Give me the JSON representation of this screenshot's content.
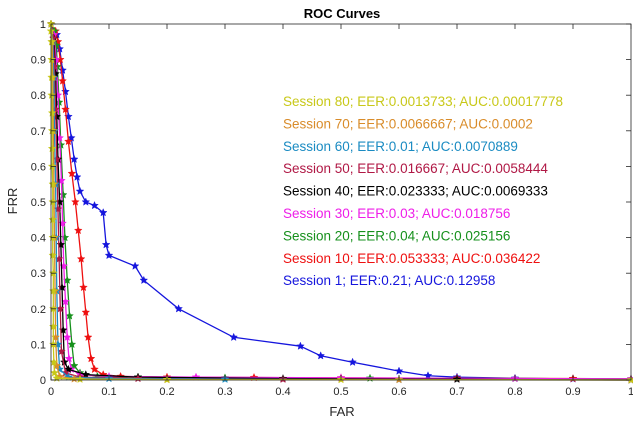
{
  "chart_data": {
    "type": "line",
    "title": "ROC Curves",
    "xlabel": "FAR",
    "ylabel": "FRR",
    "xlim": [
      0,
      1
    ],
    "ylim": [
      0,
      1
    ],
    "x_ticks": [
      "0",
      "0.1",
      "0.2",
      "0.3",
      "0.4",
      "0.5",
      "0.6",
      "0.7",
      "0.8",
      "0.9",
      "1"
    ],
    "y_ticks": [
      "0",
      "0.1",
      "0.2",
      "0.3",
      "0.4",
      "0.5",
      "0.6",
      "0.7",
      "0.8",
      "0.9",
      "1"
    ],
    "grid": false,
    "marker": "star",
    "legend_placement": "right",
    "series": [
      {
        "name": "Session 80;  EER:0.0013733;  AUC:0.00017778",
        "color": "#c8c818",
        "points": [
          [
            0,
            1
          ],
          [
            0,
            0.98
          ],
          [
            0.001,
            0.95
          ],
          [
            0.001,
            0.9
          ],
          [
            0.001,
            0.85
          ],
          [
            0.001,
            0.8
          ],
          [
            0.002,
            0.75
          ],
          [
            0.002,
            0.7
          ],
          [
            0.002,
            0.65
          ],
          [
            0.002,
            0.6
          ],
          [
            0.003,
            0.55
          ],
          [
            0.003,
            0.5
          ],
          [
            0.003,
            0.45
          ],
          [
            0.003,
            0.4
          ],
          [
            0.003,
            0.35
          ],
          [
            0.004,
            0.3
          ],
          [
            0.004,
            0.25
          ],
          [
            0.004,
            0.2
          ],
          [
            0.004,
            0.15
          ],
          [
            0.004,
            0.1
          ],
          [
            0.005,
            0.05
          ],
          [
            0.006,
            0.02
          ],
          [
            0.01,
            0.005
          ],
          [
            0.05,
            0.002
          ],
          [
            0.2,
            0.001
          ],
          [
            0.5,
            0.001
          ],
          [
            1,
            0
          ]
        ]
      },
      {
        "name": "Session 70;  EER:0.0066667;  AUC:0.0002",
        "color": "#d98c2a",
        "points": [
          [
            0,
            1
          ],
          [
            0.002,
            0.95
          ],
          [
            0.003,
            0.85
          ],
          [
            0.004,
            0.7
          ],
          [
            0.005,
            0.55
          ],
          [
            0.006,
            0.4
          ],
          [
            0.007,
            0.25
          ],
          [
            0.008,
            0.12
          ],
          [
            0.01,
            0.04
          ],
          [
            0.015,
            0.01
          ],
          [
            0.04,
            0.003
          ],
          [
            0.2,
            0.001
          ],
          [
            0.6,
            0.001
          ],
          [
            1,
            0
          ]
        ]
      },
      {
        "name": "Session 60;  EER:0.01;  AUC:0.0070889",
        "color": "#1a8bc2",
        "points": [
          [
            0,
            1
          ],
          [
            0.003,
            0.95
          ],
          [
            0.005,
            0.85
          ],
          [
            0.006,
            0.7
          ],
          [
            0.008,
            0.55
          ],
          [
            0.009,
            0.4
          ],
          [
            0.01,
            0.25
          ],
          [
            0.012,
            0.1
          ],
          [
            0.015,
            0.03
          ],
          [
            0.03,
            0.008
          ],
          [
            0.1,
            0.004
          ],
          [
            0.3,
            0.002
          ],
          [
            0.6,
            0.001
          ],
          [
            1,
            0
          ]
        ]
      },
      {
        "name": "Session 50;  EER:0.016667;  AUC:0.0058444",
        "color": "#b01845",
        "points": [
          [
            0,
            1
          ],
          [
            0.004,
            0.96
          ],
          [
            0.006,
            0.88
          ],
          [
            0.008,
            0.76
          ],
          [
            0.01,
            0.62
          ],
          [
            0.012,
            0.48
          ],
          [
            0.014,
            0.34
          ],
          [
            0.016,
            0.2
          ],
          [
            0.018,
            0.08
          ],
          [
            0.025,
            0.02
          ],
          [
            0.05,
            0.008
          ],
          [
            0.15,
            0.004
          ],
          [
            0.4,
            0.002
          ],
          [
            1,
            0
          ]
        ]
      },
      {
        "name": "Session 40;  EER:0.023333;  AUC:0.0069333",
        "color": "#000000",
        "points": [
          [
            0,
            1
          ],
          [
            0.005,
            0.96
          ],
          [
            0.008,
            0.86
          ],
          [
            0.01,
            0.74
          ],
          [
            0.012,
            0.62
          ],
          [
            0.015,
            0.5
          ],
          [
            0.017,
            0.38
          ],
          [
            0.019,
            0.26
          ],
          [
            0.021,
            0.14
          ],
          [
            0.023,
            0.05
          ],
          [
            0.03,
            0.03
          ],
          [
            0.06,
            0.015
          ],
          [
            0.15,
            0.008
          ],
          [
            0.4,
            0.004
          ],
          [
            0.7,
            0.002
          ],
          [
            1,
            0
          ]
        ]
      },
      {
        "name": "Session 30;  EER:0.03;  AUC:0.018756",
        "color": "#ee1ee8",
        "points": [
          [
            0,
            1
          ],
          [
            0.005,
            0.97
          ],
          [
            0.009,
            0.9
          ],
          [
            0.012,
            0.8
          ],
          [
            0.015,
            0.68
          ],
          [
            0.018,
            0.56
          ],
          [
            0.02,
            0.44
          ],
          [
            0.022,
            0.32
          ],
          [
            0.025,
            0.22
          ],
          [
            0.028,
            0.12
          ],
          [
            0.031,
            0.06
          ],
          [
            0.035,
            0.03
          ],
          [
            0.05,
            0.015
          ],
          [
            0.1,
            0.01
          ],
          [
            0.25,
            0.008
          ],
          [
            0.5,
            0.006
          ],
          [
            0.8,
            0.004
          ],
          [
            1,
            0.003
          ]
        ]
      },
      {
        "name": "Session 20;  EER:0.04;  AUC:0.025156",
        "color": "#16901c",
        "points": [
          [
            0,
            1
          ],
          [
            0.006,
            0.98
          ],
          [
            0.009,
            0.94
          ],
          [
            0.011,
            0.88
          ],
          [
            0.014,
            0.78
          ],
          [
            0.017,
            0.66
          ],
          [
            0.021,
            0.52
          ],
          [
            0.024,
            0.4
          ],
          [
            0.028,
            0.28
          ],
          [
            0.032,
            0.18
          ],
          [
            0.036,
            0.1
          ],
          [
            0.04,
            0.04
          ],
          [
            0.05,
            0.02
          ],
          [
            0.08,
            0.01
          ],
          [
            0.15,
            0.008
          ],
          [
            0.3,
            0.006
          ],
          [
            0.55,
            0.005
          ],
          [
            0.8,
            0.004
          ],
          [
            1,
            0.003
          ]
        ]
      },
      {
        "name": "Session 10;  EER:0.053333;  AUC:0.036422",
        "color": "#ee1010",
        "points": [
          [
            0,
            1
          ],
          [
            0.008,
            0.98
          ],
          [
            0.012,
            0.95
          ],
          [
            0.016,
            0.9
          ],
          [
            0.02,
            0.84
          ],
          [
            0.025,
            0.76
          ],
          [
            0.03,
            0.67
          ],
          [
            0.036,
            0.58
          ],
          [
            0.042,
            0.5
          ],
          [
            0.047,
            0.42
          ],
          [
            0.052,
            0.34
          ],
          [
            0.056,
            0.26
          ],
          [
            0.06,
            0.19
          ],
          [
            0.064,
            0.12
          ],
          [
            0.069,
            0.06
          ],
          [
            0.075,
            0.03
          ],
          [
            0.09,
            0.015
          ],
          [
            0.12,
            0.01
          ],
          [
            0.2,
            0.008
          ],
          [
            0.35,
            0.007
          ],
          [
            0.5,
            0.006
          ],
          [
            0.7,
            0.005
          ],
          [
            0.9,
            0.004
          ],
          [
            1,
            0.003
          ]
        ]
      },
      {
        "name": "Session 1;  EER:0.21;  AUC:0.12958",
        "color": "#1515dd",
        "points": [
          [
            0,
            1
          ],
          [
            0.01,
            0.97
          ],
          [
            0.015,
            0.93
          ],
          [
            0.02,
            0.87
          ],
          [
            0.025,
            0.81
          ],
          [
            0.03,
            0.74
          ],
          [
            0.035,
            0.68
          ],
          [
            0.04,
            0.62
          ],
          [
            0.045,
            0.57
          ],
          [
            0.05,
            0.53
          ],
          [
            0.06,
            0.5
          ],
          [
            0.075,
            0.49
          ],
          [
            0.09,
            0.47
          ],
          [
            0.095,
            0.38
          ],
          [
            0.1,
            0.35
          ],
          [
            0.145,
            0.32
          ],
          [
            0.16,
            0.28
          ],
          [
            0.22,
            0.2
          ],
          [
            0.315,
            0.12
          ],
          [
            0.43,
            0.095
          ],
          [
            0.465,
            0.068
          ],
          [
            0.52,
            0.05
          ],
          [
            0.6,
            0.025
          ],
          [
            0.65,
            0.012
          ],
          [
            0.7,
            0.008
          ],
          [
            0.8,
            0.005
          ],
          [
            0.9,
            0.003
          ],
          [
            1,
            0
          ]
        ]
      }
    ]
  }
}
